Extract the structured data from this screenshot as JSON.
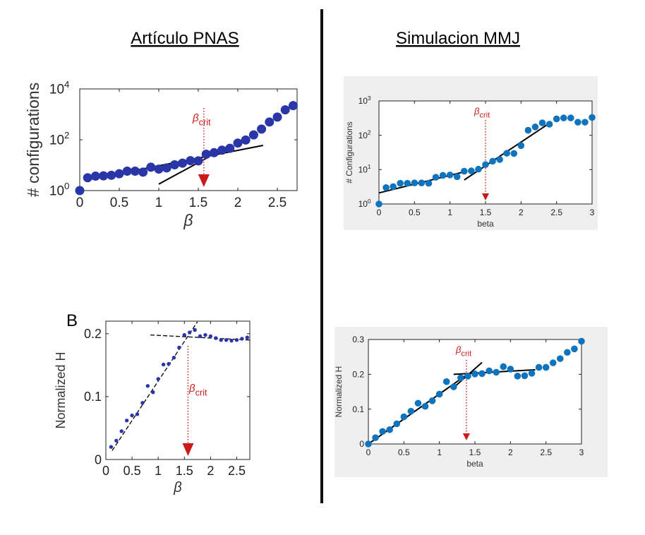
{
  "headings": {
    "left": "Artículo PNAS",
    "right": "Simulacion MMJ",
    "panel_letter": "B"
  },
  "colors": {
    "pnas_marker": "#2a35a8",
    "mmj_marker": "#0f74bd",
    "crit_arrow": "#cc1a1a",
    "fit_line": "#000000",
    "mmj_panel_bg": "#efefef"
  },
  "chart_data": [
    {
      "id": "pnas-configs",
      "type": "scatter",
      "title": "",
      "xlabel": "β",
      "ylabel": "# configurations",
      "xlim": [
        0,
        2.75
      ],
      "ylim": [
        1,
        10000
      ],
      "yscale": "log",
      "grid": false,
      "x_ticks": [
        "0",
        "0.5",
        "1",
        "1.5",
        "2",
        "2.5"
      ],
      "y_ticks": [
        "10^0",
        "10^2",
        "10^4"
      ],
      "annotation": "β crit",
      "crit_beta": 1.57,
      "points": {
        "x": [
          0,
          0.1,
          0.2,
          0.3,
          0.4,
          0.5,
          0.6,
          0.7,
          0.8,
          0.9,
          1.0,
          1.1,
          1.2,
          1.3,
          1.4,
          1.5,
          1.6,
          1.7,
          1.8,
          1.9,
          2.0,
          2.1,
          2.2,
          2.3,
          2.4,
          2.5,
          2.6,
          2.7
        ],
        "y": [
          1,
          3.2,
          3.7,
          3.8,
          4,
          4.6,
          5.8,
          5.8,
          5.3,
          8.3,
          7,
          7.8,
          10.3,
          12,
          15,
          14.8,
          27,
          31,
          39,
          46,
          74,
          98,
          155,
          263,
          500,
          780,
          1500,
          2200
        ]
      },
      "fit_lines": [
        {
          "x": [
            0.08,
            2.32
          ],
          "y": [
            2.6,
            60
          ]
        },
        {
          "x": [
            1.0,
            1.62
          ],
          "y": [
            1.8,
            20
          ]
        }
      ]
    },
    {
      "id": "mmj-configs",
      "type": "scatter",
      "title": "",
      "xlabel": "beta",
      "ylabel": "# Configurations",
      "xlim": [
        0,
        3
      ],
      "ylim": [
        1,
        1000
      ],
      "yscale": "log",
      "grid": false,
      "x_ticks": [
        "0",
        "0.5",
        "1",
        "1.5",
        "2",
        "2.5",
        "3"
      ],
      "y_ticks": [
        "10^0",
        "10^1",
        "10^2",
        "10^3"
      ],
      "annotation": "β crit",
      "crit_beta": 1.5,
      "points": {
        "x": [
          0,
          0.1,
          0.2,
          0.3,
          0.4,
          0.5,
          0.6,
          0.7,
          0.8,
          0.9,
          1.0,
          1.1,
          1.2,
          1.3,
          1.4,
          1.5,
          1.6,
          1.7,
          1.8,
          1.9,
          2.0,
          2.1,
          2.2,
          2.3,
          2.4,
          2.5,
          2.6,
          2.7,
          2.8,
          2.9,
          3.0
        ],
        "y": [
          1,
          3,
          3.2,
          4,
          4,
          4.1,
          4.1,
          4,
          6,
          6.8,
          7,
          6.2,
          9,
          9.2,
          10.3,
          14,
          17.6,
          19.7,
          30,
          29.6,
          50,
          140,
          175,
          230,
          210,
          300,
          320,
          320,
          240,
          240,
          330
        ]
      },
      "fit_lines": [
        {
          "x": [
            0,
            1.2
          ],
          "y": [
            2.1,
            8.6
          ]
        },
        {
          "x": [
            1.2,
            2.4
          ],
          "y": [
            5,
            225
          ]
        }
      ]
    },
    {
      "id": "pnas-entropy",
      "type": "scatter",
      "title": "",
      "xlabel": "β",
      "ylabel": "Normalized H",
      "xlim": [
        0,
        2.75
      ],
      "ylim": [
        0,
        0.22
      ],
      "yscale": "linear",
      "grid": false,
      "x_ticks": [
        "0",
        "0.5",
        "1",
        "1.5",
        "2",
        "2.5"
      ],
      "y_ticks": [
        "0",
        "0.1",
        "0.2"
      ],
      "annotation": "β crit",
      "crit_beta": 1.57,
      "points": {
        "x": [
          0.1,
          0.2,
          0.3,
          0.4,
          0.5,
          0.6,
          0.7,
          0.8,
          0.9,
          1.0,
          1.1,
          1.2,
          1.3,
          1.4,
          1.5,
          1.6,
          1.7,
          1.8,
          1.9,
          2.0,
          2.1,
          2.2,
          2.3,
          2.4,
          2.5,
          2.6,
          2.7
        ],
        "y": [
          0.02,
          0.03,
          0.045,
          0.062,
          0.07,
          0.072,
          0.09,
          0.117,
          0.107,
          0.128,
          0.151,
          0.152,
          0.162,
          0.178,
          0.198,
          0.202,
          0.206,
          0.196,
          0.198,
          0.196,
          0.193,
          0.19,
          0.19,
          0.189,
          0.19,
          0.192,
          0.194
        ]
      },
      "fit_lines": [
        {
          "x": [
            0.12,
            1.75
          ],
          "y": [
            0.014,
            0.219
          ]
        },
        {
          "x": [
            0.85,
            2.75
          ],
          "y": [
            0.198,
            0.19
          ]
        }
      ]
    },
    {
      "id": "mmj-entropy",
      "type": "scatter",
      "title": "",
      "xlabel": "beta",
      "ylabel": "Normalized H",
      "xlim": [
        0,
        3
      ],
      "ylim": [
        0,
        0.3
      ],
      "yscale": "linear",
      "grid": false,
      "x_ticks": [
        "0",
        "0.5",
        "1",
        "1.5",
        "2",
        "2.5",
        "3"
      ],
      "y_ticks": [
        "0",
        "0.1",
        "0.2",
        "0.3"
      ],
      "annotation": "β crit",
      "crit_beta": 1.38,
      "points": {
        "x": [
          0,
          0.1,
          0.2,
          0.3,
          0.4,
          0.5,
          0.6,
          0.7,
          0.8,
          0.9,
          1.0,
          1.1,
          1.2,
          1.3,
          1.4,
          1.5,
          1.6,
          1.7,
          1.8,
          1.9,
          2.0,
          2.1,
          2.2,
          2.3,
          2.4,
          2.5,
          2.6,
          2.7,
          2.8,
          2.9,
          3.0
        ],
        "y": [
          0,
          0.018,
          0.036,
          0.041,
          0.058,
          0.078,
          0.094,
          0.117,
          0.108,
          0.124,
          0.143,
          0.179,
          0.164,
          0.19,
          0.195,
          0.201,
          0.202,
          0.21,
          0.206,
          0.222,
          0.215,
          0.195,
          0.196,
          0.203,
          0.22,
          0.22,
          0.233,
          0.245,
          0.263,
          0.273,
          0.295
        ]
      },
      "fit_lines": [
        {
          "x": [
            0,
            1.38
          ],
          "y": [
            0,
            0.198
          ]
        },
        {
          "x": [
            1.2,
            1.6
          ],
          "y": [
            0.162,
            0.234
          ]
        },
        {
          "x": [
            1.2,
            2.35
          ],
          "y": [
            0.2,
            0.213
          ]
        }
      ]
    }
  ]
}
